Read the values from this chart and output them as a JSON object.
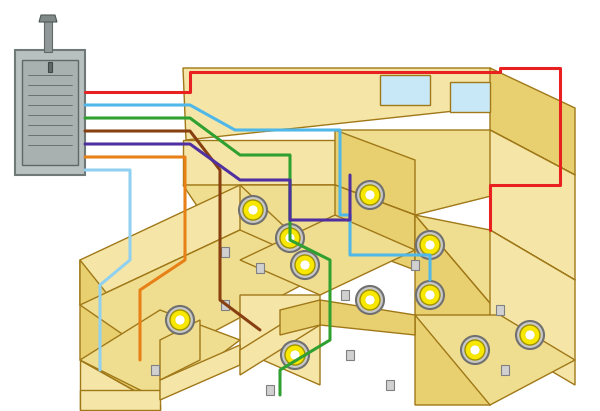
{
  "bg_color": "#ffffff",
  "wall_face_color": "#f5e6b0",
  "wall_edge_color": "#8B6914",
  "wall_dark_color": "#d4c070",
  "panel_body_color": "#b0b8b8",
  "panel_edge_color": "#808888",
  "panel_dark_color": "#909898",
  "light_outer_color": "#888888",
  "light_inner_color": "#f5e600",
  "light_glow_color": "#fdf080",
  "circuit_colors": {
    "red": "#e82020",
    "blue": "#50b8e8",
    "green": "#30a030",
    "brown": "#884010",
    "purple": "#5030a0",
    "orange": "#e88018",
    "light_blue": "#90d0f0"
  },
  "lw": 2.5,
  "figsize": [
    6.0,
    4.11
  ],
  "dpi": 100
}
